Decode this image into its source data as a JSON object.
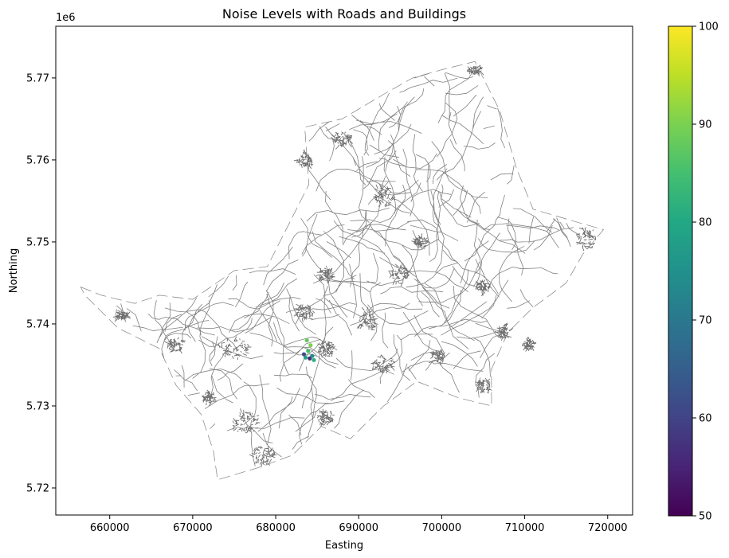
{
  "chart_data": {
    "type": "scatter",
    "title": "Noise Levels with Roads and Buildings",
    "xlabel": "Easting",
    "ylabel": "Northing",
    "xlim": [
      653500,
      723000
    ],
    "ylim": [
      5716700,
      5776300
    ],
    "x_ticks": [
      {
        "value": 660000,
        "label": "660000"
      },
      {
        "value": 670000,
        "label": "670000"
      },
      {
        "value": 680000,
        "label": "680000"
      },
      {
        "value": 690000,
        "label": "690000"
      },
      {
        "value": 700000,
        "label": "700000"
      },
      {
        "value": 710000,
        "label": "710000"
      },
      {
        "value": 720000,
        "label": "720000"
      }
    ],
    "y_ticks": [
      {
        "value": 5720000,
        "label": "5.72"
      },
      {
        "value": 5730000,
        "label": "5.73"
      },
      {
        "value": 5740000,
        "label": "5.74"
      },
      {
        "value": 5750000,
        "label": "5.75"
      },
      {
        "value": 5760000,
        "label": "5.76"
      },
      {
        "value": 5770000,
        "label": "5.77"
      }
    ],
    "y_offset_label": "1e6",
    "grid": false,
    "road_color": "#808080",
    "colormap": "viridis",
    "colorbar": {
      "min": 50,
      "max": 100,
      "ticks": [
        {
          "value": 50,
          "label": "50"
        },
        {
          "value": 60,
          "label": "60"
        },
        {
          "value": 70,
          "label": "70"
        },
        {
          "value": 80,
          "label": "80"
        },
        {
          "value": 90,
          "label": "90"
        },
        {
          "value": 100,
          "label": "100"
        }
      ]
    },
    "region_outline": [
      [
        656500,
        5744500
      ],
      [
        659000,
        5743500
      ],
      [
        663000,
        5742500
      ],
      [
        666000,
        5743500
      ],
      [
        670000,
        5743000
      ],
      [
        675000,
        5746500
      ],
      [
        679000,
        5747000
      ],
      [
        684000,
        5757000
      ],
      [
        683500,
        5764000
      ],
      [
        688000,
        5765000
      ],
      [
        693000,
        5768000
      ],
      [
        696500,
        5770000
      ],
      [
        700000,
        5771000
      ],
      [
        704000,
        5772000
      ],
      [
        707000,
        5766000
      ],
      [
        709000,
        5759000
      ],
      [
        711000,
        5754000
      ],
      [
        716000,
        5752500
      ],
      [
        719500,
        5751500
      ],
      [
        717000,
        5748500
      ],
      [
        715000,
        5745000
      ],
      [
        711000,
        5742000
      ],
      [
        708000,
        5739000
      ],
      [
        706000,
        5734500
      ],
      [
        706000,
        5730000
      ],
      [
        702000,
        5731000
      ],
      [
        697000,
        5733000
      ],
      [
        693000,
        5730000
      ],
      [
        689000,
        5726000
      ],
      [
        685500,
        5727500
      ],
      [
        682000,
        5724000
      ],
      [
        678000,
        5722500
      ],
      [
        673000,
        5721000
      ],
      [
        672500,
        5724500
      ],
      [
        671000,
        5729000
      ],
      [
        668000,
        5732500
      ],
      [
        666000,
        5737000
      ],
      [
        661000,
        5739500
      ],
      [
        657000,
        5743500
      ]
    ],
    "towns": [
      [
        676500,
        5728000,
        3500,
        2600
      ],
      [
        678500,
        5724000,
        3000,
        2200
      ],
      [
        675000,
        5737000,
        3500,
        2400
      ],
      [
        683500,
        5741500,
        2000,
        1800
      ],
      [
        686000,
        5737000,
        2000,
        2000
      ],
      [
        691000,
        5740500,
        2000,
        2600
      ],
      [
        693000,
        5735000,
        2500,
        2000
      ],
      [
        695000,
        5746000,
        2200,
        2200
      ],
      [
        693000,
        5755500,
        2200,
        2600
      ],
      [
        688000,
        5762500,
        2200,
        2000
      ],
      [
        683500,
        5760000,
        1800,
        1800
      ],
      [
        704000,
        5771000,
        1800,
        1000
      ],
      [
        705000,
        5744500,
        1600,
        1400
      ],
      [
        707500,
        5739000,
        1400,
        1600
      ],
      [
        705000,
        5732500,
        1800,
        1800
      ],
      [
        717500,
        5750500,
        2200,
        2600
      ],
      [
        661500,
        5741000,
        1500,
        1000
      ],
      [
        668000,
        5737500,
        2200,
        1600
      ],
      [
        686000,
        5728500,
        2000,
        1600
      ],
      [
        697500,
        5750000,
        1600,
        1400
      ],
      [
        686000,
        5746000,
        1600,
        1600
      ],
      [
        710500,
        5737500,
        1400,
        1200
      ],
      [
        699500,
        5736000,
        1600,
        1400
      ],
      [
        672000,
        5731000,
        1400,
        1400
      ]
    ],
    "noise_points": [
      {
        "x": 683600,
        "y": 5735900,
        "v": 78
      },
      {
        "x": 683900,
        "y": 5736700,
        "v": 85
      },
      {
        "x": 684200,
        "y": 5737400,
        "v": 90
      },
      {
        "x": 683400,
        "y": 5736300,
        "v": 62
      },
      {
        "x": 684600,
        "y": 5735600,
        "v": 82
      },
      {
        "x": 684100,
        "y": 5735800,
        "v": 55
      },
      {
        "x": 683750,
        "y": 5738000,
        "v": 88
      },
      {
        "x": 684400,
        "y": 5736100,
        "v": 74
      }
    ]
  }
}
